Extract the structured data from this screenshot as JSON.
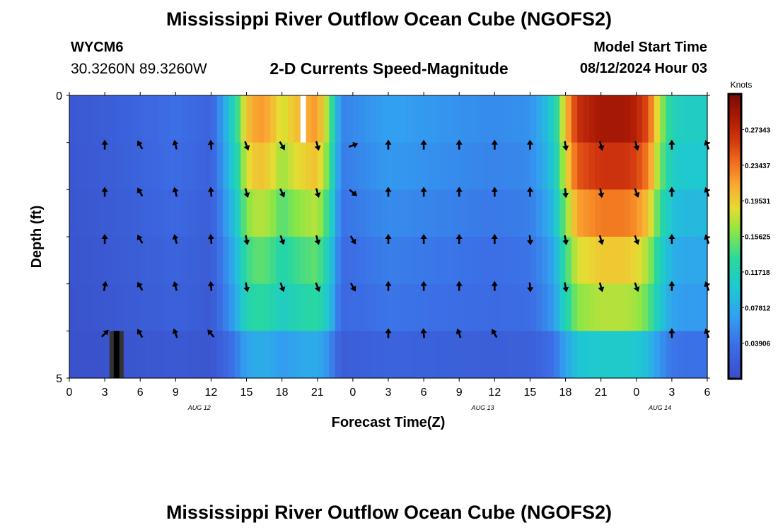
{
  "header": {
    "title": "Mississippi River Outflow Ocean Cube (NGOFS2)",
    "station": "WYCM6",
    "coords": "30.3260N  89.3260W",
    "subtitle": "2-D Currents Speed-Magnitude",
    "model_start_label": "Model Start Time",
    "model_start_value": "08/12/2024 Hour 03"
  },
  "footer": {
    "title": "Mississippi River Outflow Ocean Cube (NGOFS2)"
  },
  "chart_data": {
    "type": "heatmap",
    "title": "2-D Currents Speed-Magnitude",
    "xlabel": "Forecast Time(Z)",
    "ylabel": "Depth (ft)",
    "x_tick_labels": [
      "0",
      "3",
      "6",
      "9",
      "12",
      "15",
      "18",
      "21",
      "0",
      "3",
      "6",
      "9",
      "12",
      "15",
      "18",
      "21",
      "0",
      "3",
      "6"
    ],
    "date_labels": [
      {
        "text": "AUG 12",
        "hour": 11
      },
      {
        "text": "AUG 13",
        "hour": 35
      },
      {
        "text": "AUG 14",
        "hour": 50
      }
    ],
    "y_tick_labels": [
      "0",
      "5"
    ],
    "xlim": [
      0,
      54
    ],
    "ylim": [
      0,
      5
    ],
    "colorbar": {
      "unit": "Knots",
      "range": [
        0,
        0.3125
      ],
      "tick_labels": [
        "0.03906",
        "0.07812",
        "0.11718",
        "0.15625",
        "0.19531",
        "0.23437",
        "0.27343"
      ],
      "tick_values": [
        0.03906,
        0.07812,
        0.11718,
        0.15625,
        0.19531,
        0.23437,
        0.27343
      ]
    },
    "hours": [
      0,
      3,
      6,
      9,
      12,
      13,
      14,
      15,
      16,
      17,
      18,
      19,
      20,
      21,
      22,
      23,
      24,
      27,
      30,
      33,
      36,
      39,
      40,
      41,
      42,
      43,
      44,
      45,
      46,
      47,
      48,
      49,
      50,
      51,
      52,
      53,
      54
    ],
    "speed_profile": [
      0.012,
      0.018,
      0.028,
      0.038,
      0.025,
      0.07,
      0.12,
      0.2,
      0.22,
      0.21,
      0.18,
      0.2,
      0.21,
      0.22,
      0.16,
      0.05,
      0.055,
      0.07,
      0.065,
      0.06,
      0.055,
      0.06,
      0.08,
      0.11,
      0.2,
      0.27,
      0.28,
      0.29,
      0.29,
      0.29,
      0.28,
      0.25,
      0.17,
      0.12,
      0.11,
      0.11,
      0.11
    ],
    "layer_factors": [
      1.0,
      0.92,
      0.8,
      0.68,
      0.6,
      0.36
    ],
    "markers": [
      {
        "type": "gap",
        "hour": 4,
        "layer": 5
      },
      {
        "type": "gap",
        "hour": 19.8,
        "layer": 0
      }
    ],
    "arrow_rows": [
      {
        "layer": 1,
        "hours": [
          3,
          6,
          9,
          12,
          15,
          18,
          21,
          24,
          27,
          30,
          33,
          36,
          39,
          42,
          45,
          48,
          51,
          54
        ],
        "dirs": [
          0,
          -30,
          -15,
          -5,
          160,
          150,
          165,
          70,
          0,
          0,
          0,
          0,
          0,
          170,
          165,
          165,
          0,
          -20
        ]
      },
      {
        "layer": 2,
        "hours": [
          3,
          6,
          9,
          12,
          15,
          18,
          21,
          24,
          27,
          30,
          33,
          36,
          39,
          42,
          45,
          48,
          51,
          54
        ],
        "dirs": [
          0,
          -30,
          -15,
          -5,
          165,
          155,
          165,
          130,
          0,
          0,
          0,
          0,
          0,
          175,
          170,
          160,
          0,
          -20
        ]
      },
      {
        "layer": 3,
        "hours": [
          3,
          6,
          9,
          12,
          15,
          18,
          21,
          24,
          27,
          30,
          33,
          36,
          39,
          42,
          45,
          48,
          51,
          54
        ],
        "dirs": [
          0,
          -30,
          -15,
          -5,
          170,
          160,
          165,
          150,
          0,
          0,
          0,
          0,
          175,
          170,
          165,
          160,
          0,
          -20
        ]
      },
      {
        "layer": 4,
        "hours": [
          3,
          6,
          9,
          12,
          15,
          18,
          21,
          24,
          27,
          30,
          33,
          36,
          39,
          42,
          45,
          48,
          51,
          54
        ],
        "dirs": [
          10,
          -30,
          -15,
          -5,
          170,
          160,
          160,
          150,
          0,
          0,
          0,
          0,
          175,
          170,
          165,
          160,
          0,
          -20
        ]
      },
      {
        "layer": 5,
        "hours": [
          3,
          6,
          9,
          12,
          27,
          30,
          33,
          36,
          51,
          54
        ],
        "dirs": [
          45,
          -30,
          -20,
          -40,
          0,
          -5,
          -20,
          -30,
          0,
          -20
        ]
      }
    ]
  }
}
